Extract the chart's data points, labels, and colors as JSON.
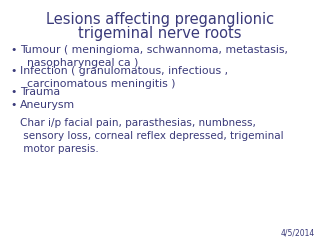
{
  "title_line1": "Lesions affecting preganglionic",
  "title_line2": "trigeminal nerve roots",
  "title_color": "#3a3a7a",
  "title_fontsize": 10.5,
  "text_color": "#3a3a7a",
  "bullet_fontsize": 7.8,
  "bullets": [
    "Tumour ( meningioma, schwannoma, metastasis,\n  nasopharyngeal ca )",
    "Infection ( granulomatous, infectious ,\n  carcinomatous meningitis )",
    "Trauma",
    "Aneurysm"
  ],
  "footer_text": "Char i/p facial pain, parasthesias, numbness,\n sensory loss, corneal reflex depressed, trigeminal\n motor paresis.",
  "footer_fontsize": 7.5,
  "date_text": "4/5/2014",
  "date_fontsize": 5.5,
  "background_color": "#ffffff"
}
